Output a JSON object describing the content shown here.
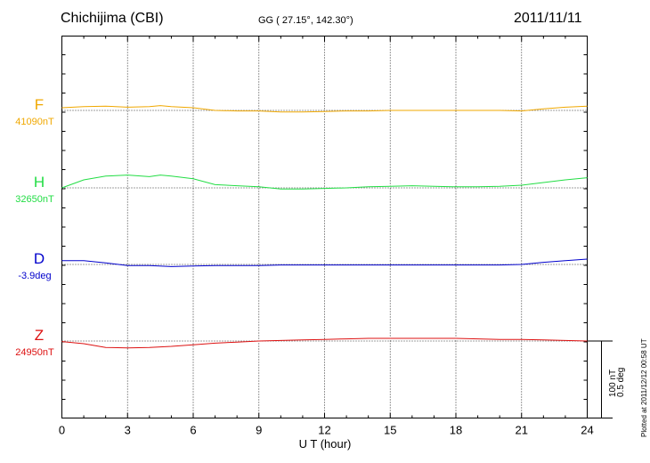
{
  "header": {
    "title": "Chichijima (CBI)",
    "coords": "GG ( 27.15°, 142.30°)",
    "date": "2011/11/11"
  },
  "footer": {
    "plotted": "Plotted at 2011/12/12 00:58 UT",
    "scale_nt": "100 nT",
    "scale_deg": "0.5 deg"
  },
  "chart_data": {
    "type": "line",
    "title": "Chichijima (CBI)",
    "xlabel": "U T (hour)",
    "xlim": [
      0,
      24
    ],
    "xticks": [
      0,
      3,
      6,
      9,
      12,
      15,
      18,
      21,
      24
    ],
    "xtick_labels": [
      "0",
      "3",
      "6",
      "9",
      "12",
      "15",
      "18",
      "21",
      "24"
    ],
    "grid": true,
    "scale": "100 nT / 0.5 deg per scale bar",
    "series": [
      {
        "name": "F",
        "baseline_label": "41090nT",
        "unit": "nT",
        "color": "#f0a800",
        "x": [
          0,
          1,
          2,
          3,
          4,
          4.5,
          5,
          6,
          7,
          8,
          9,
          10,
          11,
          12,
          13,
          14,
          15,
          16,
          17,
          18,
          19,
          20,
          21,
          22,
          23,
          24
        ],
        "y": [
          5,
          7,
          8,
          6,
          7,
          9,
          7,
          5,
          0,
          -1,
          -1,
          -3,
          -3,
          -2,
          -1,
          -1,
          0,
          0,
          0,
          0,
          0,
          0,
          -1,
          3,
          6,
          8
        ]
      },
      {
        "name": "H",
        "baseline_label": "32650nT",
        "unit": "nT",
        "color": "#22dd44",
        "x": [
          0,
          1,
          2,
          3,
          4,
          4.5,
          5,
          6,
          7,
          8,
          9,
          10,
          11,
          12,
          13,
          14,
          15,
          16,
          17,
          18,
          19,
          20,
          21,
          22,
          23,
          24
        ],
        "y": [
          0,
          15,
          22,
          24,
          21,
          24,
          22,
          17,
          6,
          4,
          2,
          -2,
          -2,
          -1,
          0,
          2,
          3,
          4,
          3,
          2,
          2,
          3,
          5,
          10,
          15,
          19
        ]
      },
      {
        "name": "D",
        "baseline_label": "-3.9deg",
        "unit": "deg",
        "color": "#0000cc",
        "x": [
          0,
          1,
          2,
          3,
          4,
          5,
          6,
          7,
          8,
          9,
          10,
          11,
          12,
          13,
          14,
          15,
          16,
          17,
          18,
          19,
          20,
          21,
          22,
          23,
          24
        ],
        "y": [
          0.035,
          0.035,
          0.015,
          -0.01,
          -0.01,
          -0.02,
          -0.015,
          -0.01,
          -0.01,
          -0.01,
          -0.005,
          -0.005,
          -0.005,
          -0.005,
          -0.005,
          -0.005,
          -0.005,
          -0.005,
          -0.005,
          -0.005,
          -0.005,
          0.0,
          0.02,
          0.035,
          0.05
        ]
      },
      {
        "name": "Z",
        "baseline_label": "24950nT",
        "unit": "nT",
        "color": "#dd1111",
        "x": [
          0,
          1,
          2,
          3,
          4,
          5,
          6,
          7,
          8,
          9,
          10,
          11,
          12,
          13,
          14,
          15,
          16,
          17,
          18,
          19,
          20,
          21,
          22,
          23,
          24
        ],
        "y": [
          -1,
          -5,
          -12,
          -13,
          -12,
          -10,
          -7,
          -4,
          -2,
          0,
          1,
          2,
          3,
          4,
          5,
          5,
          5,
          5,
          5,
          4,
          3,
          3,
          2,
          1,
          0
        ]
      }
    ]
  }
}
